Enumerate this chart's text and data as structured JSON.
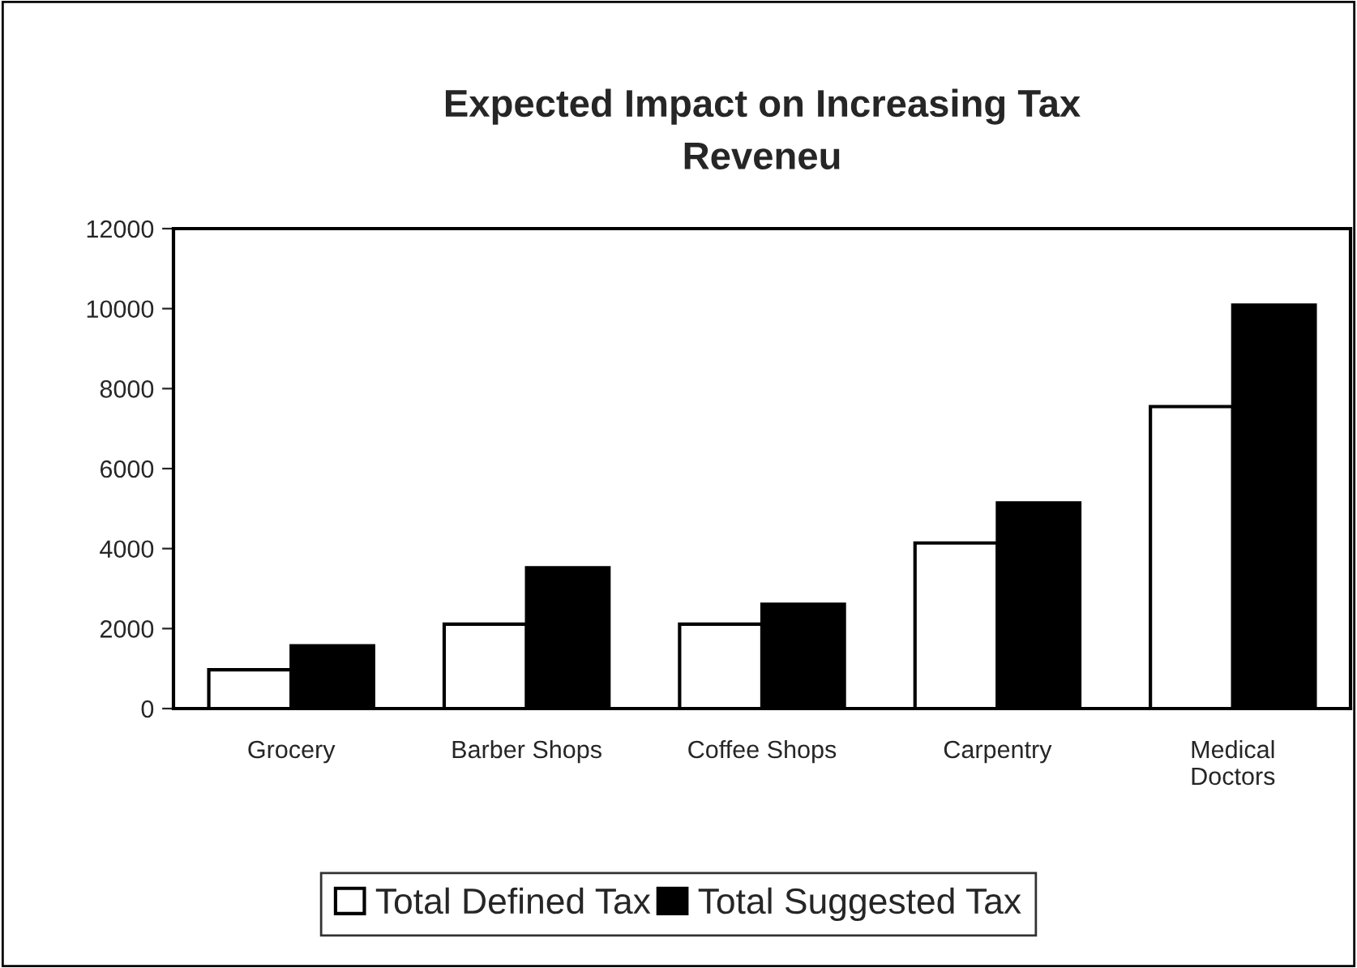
{
  "chart_data": {
    "type": "bar",
    "title": "Expected Impact on Increasing Tax\nReveneu",
    "categories": [
      "Grocery",
      "Barber Shops",
      "Coffee Shops",
      "Carpentry",
      "Medical\nDoctors"
    ],
    "series": [
      {
        "name": "Total Defined Tax",
        "color": "#ffffff",
        "values": [
          970,
          2110,
          2110,
          4140,
          7550
        ]
      },
      {
        "name": "Total Suggested Tax",
        "color": "#000000",
        "values": [
          1570,
          3520,
          2610,
          5140,
          10090
        ]
      }
    ],
    "ylim": [
      0,
      12000
    ],
    "yticks": [
      0,
      2000,
      4000,
      6000,
      8000,
      10000,
      12000
    ],
    "grid": false,
    "legend": "bottom"
  }
}
